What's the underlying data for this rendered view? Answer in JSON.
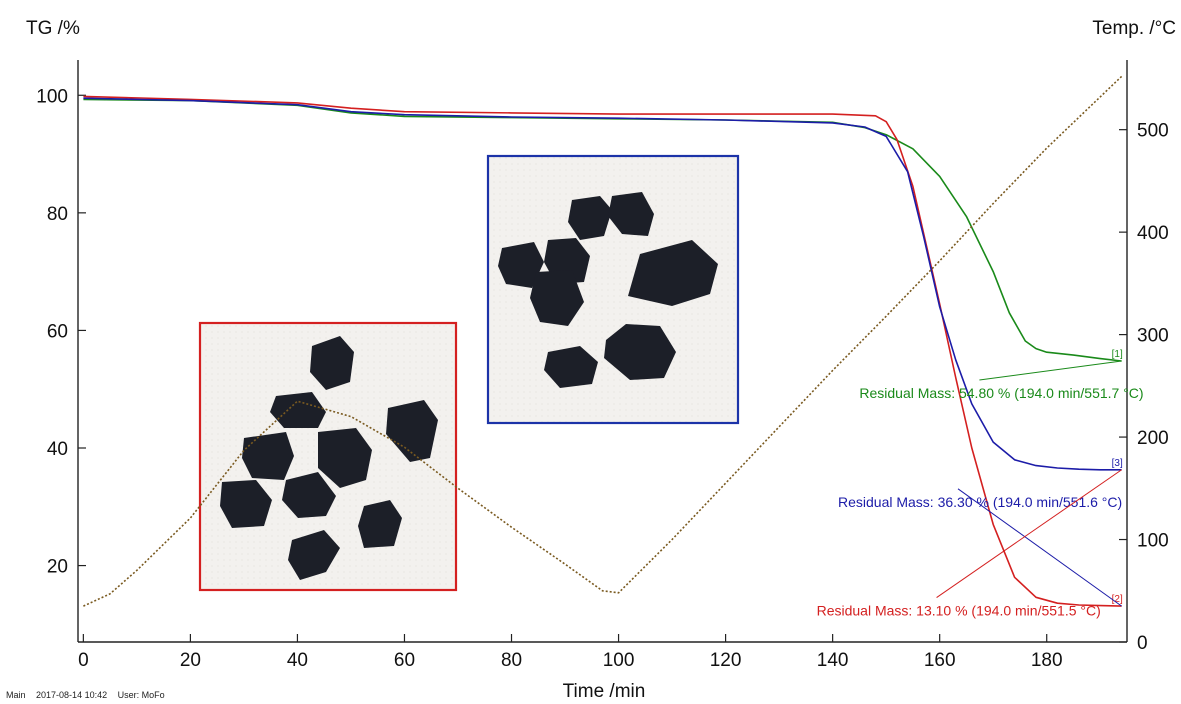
{
  "footer": {
    "label": "Main",
    "datetime": "2017-08-14 10:42",
    "user": "User: MoFo"
  },
  "chart_data": {
    "type": "line",
    "title": "",
    "xlabel": "Time /min",
    "ylabel": "TG /%",
    "y2label": "Temp. /°C",
    "xlim": [
      -1,
      195
    ],
    "ylim": [
      7,
      106
    ],
    "y2lim": [
      0,
      568
    ],
    "xticks": [
      0,
      20,
      40,
      60,
      80,
      100,
      120,
      140,
      160,
      180
    ],
    "yticks": [
      20,
      40,
      60,
      80,
      100
    ],
    "y2ticks": [
      0,
      100,
      200,
      300,
      400,
      500
    ],
    "grid": false,
    "legend": "none",
    "series": [
      {
        "color": "#1a8a1a",
        "marker": "[1]",
        "axis": "left",
        "x": [
          0,
          20,
          40,
          50,
          60,
          80,
          100,
          120,
          140,
          146,
          150,
          155,
          160,
          165,
          170,
          173,
          176,
          178,
          180,
          185,
          190,
          194
        ],
        "y": [
          99.3,
          99.1,
          98.3,
          97.0,
          96.4,
          96.2,
          96.0,
          95.8,
          95.4,
          94.5,
          93.3,
          90.9,
          86.2,
          79.4,
          70.0,
          63.0,
          58.2,
          56.9,
          56.3,
          55.8,
          55.2,
          54.8
        ]
      },
      {
        "color": "#d42020",
        "marker": "[2]",
        "axis": "left",
        "x": [
          0,
          20,
          40,
          50,
          60,
          80,
          100,
          120,
          140,
          148,
          150,
          152,
          155,
          158,
          160,
          163,
          166,
          170,
          174,
          178,
          182,
          186,
          190,
          194
        ],
        "y": [
          99.8,
          99.3,
          98.7,
          97.8,
          97.2,
          97.0,
          96.8,
          96.8,
          96.8,
          96.5,
          95.5,
          92.5,
          84.5,
          72.5,
          64.5,
          52.0,
          40.0,
          27.0,
          18.0,
          14.6,
          13.6,
          13.3,
          13.2,
          13.1
        ]
      },
      {
        "color": "#1c1ca8",
        "marker": "[3]",
        "axis": "left",
        "x": [
          0,
          20,
          40,
          50,
          60,
          80,
          100,
          120,
          140,
          146,
          150,
          154,
          157,
          160,
          163,
          166,
          170,
          174,
          178,
          182,
          186,
          190,
          194
        ],
        "y": [
          99.5,
          99.1,
          98.4,
          97.2,
          96.7,
          96.3,
          96.1,
          95.8,
          95.3,
          94.6,
          93.0,
          87.0,
          76.0,
          64.0,
          55.0,
          47.5,
          41.0,
          38.0,
          37.0,
          36.6,
          36.4,
          36.3,
          36.3
        ]
      },
      {
        "color": "#7a5a20",
        "marker": "",
        "axis": "right",
        "dashed": true,
        "x": [
          0,
          5,
          10,
          20,
          30,
          40,
          50,
          60,
          70,
          80,
          90,
          97,
          100,
          110,
          120,
          130,
          140,
          150,
          160,
          170,
          180,
          190,
          194
        ],
        "y": [
          35,
          47,
          70,
          121,
          187,
          235,
          220,
          190,
          150,
          112,
          76,
          50,
          48,
          100,
          155,
          210,
          265,
          318,
          372,
          428,
          482,
          532,
          552
        ]
      }
    ],
    "annotations": [
      {
        "text": "Residual Mass: 54.80 % (194.0 min/551.7 °C)",
        "color": "#1a8a1a",
        "x": 145,
        "y": 48.5
      },
      {
        "text": "Residual Mass: 36.30 % (194.0 min/551.6 °C)",
        "color": "#1c1ca8",
        "x": 141,
        "y": 30.0
      },
      {
        "text": "Residual Mass: 13.10 % (194.0 min/551.5 °C)",
        "color": "#d42020",
        "x": 137,
        "y": 11.5
      }
    ]
  }
}
